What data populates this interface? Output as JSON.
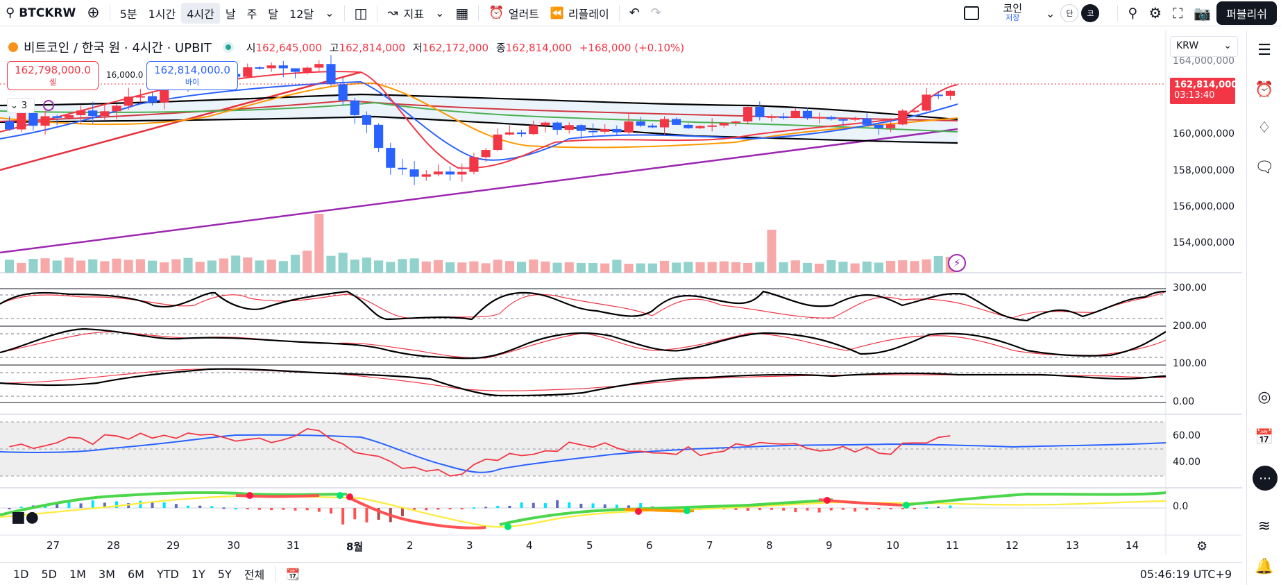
{
  "toolbar": {
    "symbol": "BTCKRW",
    "intervals": [
      "5분",
      "1시간",
      "4시간",
      "날",
      "주",
      "달",
      "12달"
    ],
    "active_interval": "4시간",
    "indicators_label": "지표",
    "alert_label": "얼러트",
    "replay_label": "리플레이",
    "layout_name": "코인",
    "layout_status": "저장",
    "mini1": "단",
    "mini2": "코",
    "publish_label": "퍼블리쉬"
  },
  "legend": {
    "title": "비트코인 / 한국 원 · 4시간 · UPBIT",
    "open_label": "시",
    "open": "162,645,000",
    "high_label": "고",
    "high": "162,814,000",
    "low_label": "저",
    "low": "162,172,000",
    "close_label": "종",
    "close": "162,814,000",
    "change": "+168,000 (+0.10%)"
  },
  "trade": {
    "sell_price": "162,798,000.0",
    "sell_label": "셀",
    "spread": "16,000.0",
    "buy_price": "162,814,000.0",
    "buy_label": "바이",
    "indicators_count": "3"
  },
  "currency": "KRW",
  "price_tag": {
    "price": "162,814,000",
    "countdown": "03:13:40"
  },
  "price_axis": [
    "164,000,000",
    "160,000,000",
    "158,000,000",
    "156,000,000",
    "154,000,000"
  ],
  "stoch_axis": [
    "300.00",
    "200.00",
    "100.00",
    "0.00"
  ],
  "rsi_axis": [
    "60.00",
    "40.00"
  ],
  "macd_axis": [
    "0.0"
  ],
  "time_axis": [
    "27",
    "28",
    "29",
    "30",
    "31",
    "8월",
    "2",
    "3",
    "4",
    "5",
    "6",
    "7",
    "8",
    "9",
    "10",
    "11",
    "12",
    "13",
    "14"
  ],
  "bottom": {
    "ranges": [
      "1D",
      "5D",
      "1M",
      "3M",
      "6M",
      "YTD",
      "1Y",
      "5Y",
      "전체"
    ],
    "clock": "05:46:19 UTC+9"
  },
  "colors": {
    "up": "#f23645",
    "down": "#2962ff",
    "purple": "#9c27b0"
  },
  "chart_data": {
    "type": "candlestick",
    "x": [
      "27",
      "28",
      "29",
      "30",
      "31",
      "8월",
      "2",
      "3",
      "4",
      "5",
      "6",
      "7",
      "8",
      "9",
      "10",
      "11"
    ],
    "close_series": [
      160.7,
      161.1,
      161.7,
      162.9,
      163.6,
      163.9,
      158.4,
      157.3,
      160.2,
      160.5,
      160.4,
      160.6,
      161.4,
      161.0,
      160.7,
      162.8
    ],
    "volume_relative": [
      0.5,
      0.6,
      0.6,
      0.8,
      0.7,
      1.0,
      0.6,
      0.6,
      0.5,
      0.5,
      0.5,
      0.5,
      0.6,
      0.5,
      0.6,
      0.7
    ],
    "rsi": [
      52,
      55,
      58,
      60,
      58,
      62,
      38,
      30,
      47,
      53,
      50,
      49,
      56,
      52,
      49,
      63
    ],
    "ylabel": "KRW"
  }
}
